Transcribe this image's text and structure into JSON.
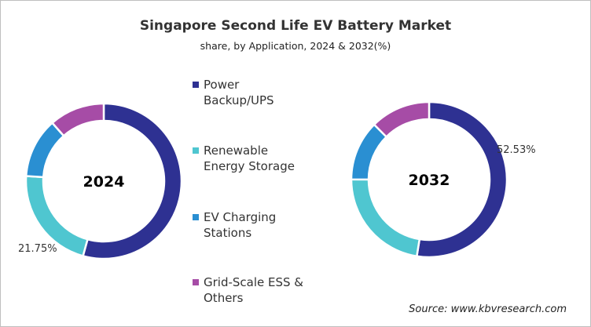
{
  "chart_data": {
    "type": "donut",
    "title": "Singapore Second Life EV Battery Market",
    "subtitle": "share, by Application, 2024 & 2032(%)",
    "legend": [
      {
        "name": "Power Backup/UPS",
        "lines": [
          "Power",
          "Backup/UPS"
        ],
        "color": "#2E3192"
      },
      {
        "name": "Renewable Energy Storage",
        "lines": [
          "Renewable",
          "Energy Storage"
        ],
        "color": "#4FC6D0"
      },
      {
        "name": "EV Charging Stations",
        "lines": [
          "EV Charging",
          "Stations"
        ],
        "color": "#2A8FD2"
      },
      {
        "name": "Grid-Scale ESS & Others",
        "lines": [
          "Grid-Scale ESS &",
          "Others"
        ],
        "color": "#A64CA6"
      }
    ],
    "legend_placement": "center",
    "charts": [
      {
        "label": "2024",
        "values": [
          54.3,
          21.75,
          12.45,
          11.5
        ],
        "data_label": "21.75%"
      },
      {
        "label": "2032",
        "values": [
          52.53,
          22.5,
          12.5,
          12.47
        ],
        "data_label": "52.53%"
      }
    ]
  },
  "source": "Source: www.kbvresearch.com"
}
